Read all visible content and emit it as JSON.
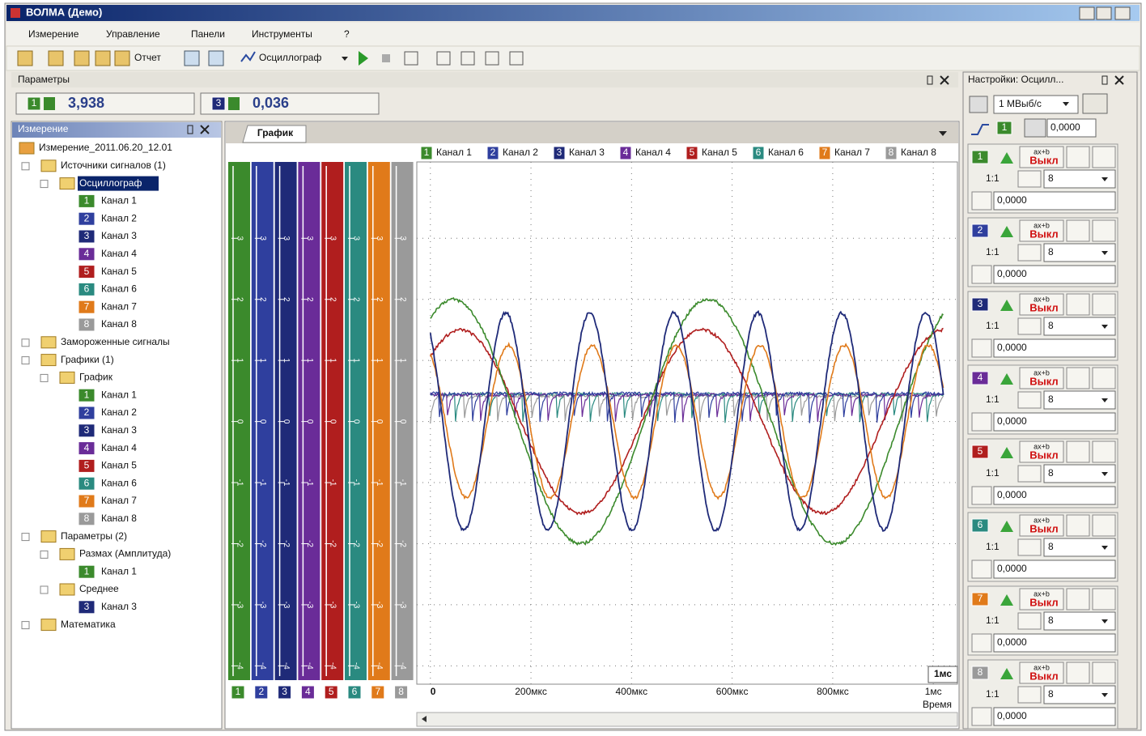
{
  "window": {
    "title": "ВОЛМА (Демо)"
  },
  "menu": [
    "Измерение",
    "Управление",
    "Панели",
    "Инструменты",
    "?"
  ],
  "toolbar": {
    "report": "Отчет",
    "device": "Осциллограф"
  },
  "channels": [
    {
      "number": "1",
      "name": "Канал 1",
      "color": "#3b8a2c"
    },
    {
      "number": "2",
      "name": "Канал 2",
      "color": "#2f3f9e"
    },
    {
      "number": "3",
      "name": "Канал 3",
      "color": "#1f2a78"
    },
    {
      "number": "4",
      "name": "Канал 4",
      "color": "#6a2c98"
    },
    {
      "number": "5",
      "name": "Канал 5",
      "color": "#b01e1e"
    },
    {
      "number": "6",
      "name": "Канал 6",
      "color": "#2a8a80"
    },
    {
      "number": "7",
      "name": "Канал 7",
      "color": "#e07a1a"
    },
    {
      "number": "8",
      "name": "Канал 8",
      "color": "#9a9a9a"
    }
  ],
  "parameters": {
    "title": "Параметры",
    "items": [
      {
        "channel": "1",
        "value": "3,938"
      },
      {
        "channel": "3",
        "value": "0,036"
      }
    ]
  },
  "tree": {
    "title": "Измерение",
    "nodes": [
      {
        "label": "Измерение_2011.06.20_12.01",
        "level": 0
      },
      {
        "label": "Источники сигналов (1)",
        "level": 1
      },
      {
        "label": "Осциллограф",
        "level": 2,
        "selected": true
      },
      {
        "label": "Канал 1",
        "badge": "1",
        "level": 3
      },
      {
        "label": "Канал 2",
        "badge": "2",
        "level": 3
      },
      {
        "label": "Канал 3",
        "badge": "3",
        "level": 3
      },
      {
        "label": "Канал 4",
        "badge": "4",
        "level": 3
      },
      {
        "label": "Канал 5",
        "badge": "5",
        "level": 3
      },
      {
        "label": "Канал 6",
        "badge": "6",
        "level": 3
      },
      {
        "label": "Канал 7",
        "badge": "7",
        "level": 3
      },
      {
        "label": "Канал 8",
        "badge": "8",
        "level": 3
      },
      {
        "label": "Замороженные сигналы",
        "level": 1
      },
      {
        "label": "Графики (1)",
        "level": 1
      },
      {
        "label": "График",
        "level": 2
      },
      {
        "label": "Канал 1",
        "badge": "1",
        "level": 3
      },
      {
        "label": "Канал 2",
        "badge": "2",
        "level": 3
      },
      {
        "label": "Канал 3",
        "badge": "3",
        "level": 3
      },
      {
        "label": "Канал 4",
        "badge": "4",
        "level": 3
      },
      {
        "label": "Канал 5",
        "badge": "5",
        "level": 3
      },
      {
        "label": "Канал 6",
        "badge": "6",
        "level": 3
      },
      {
        "label": "Канал 7",
        "badge": "7",
        "level": 3
      },
      {
        "label": "Канал 8",
        "badge": "8",
        "level": 3
      },
      {
        "label": "Параметры (2)",
        "level": 1
      },
      {
        "label": "Размах (Амплитуда)",
        "level": 2
      },
      {
        "label": "Канал 1",
        "badge": "1",
        "level": 3
      },
      {
        "label": "Среднее",
        "level": 2
      },
      {
        "label": "Канал 3",
        "badge": "3",
        "level": 3
      },
      {
        "label": "Математика",
        "level": 1
      }
    ]
  },
  "graph": {
    "tab": "График",
    "y_range": [
      -4.3,
      4.25
    ],
    "y_ticks": [
      3,
      2,
      1,
      0,
      -1,
      -2,
      -3,
      -4
    ],
    "x_range": [
      -27,
      1048
    ],
    "x_ticks": [
      {
        "value": 0,
        "label": "0"
      },
      {
        "value": 200,
        "label": "200мкс"
      },
      {
        "value": 400,
        "label": "400мкс"
      },
      {
        "value": 600,
        "label": "600мкс"
      },
      {
        "value": 800,
        "label": "800мкс"
      },
      {
        "value": 1000,
        "label": "1мс"
      }
    ],
    "x_scale_box": "1мс",
    "x_title": "Время"
  },
  "settings": {
    "title": "Настройки: Осцилл...",
    "sample_rate": "1 МВыб/с",
    "trigger_channel": "1",
    "trigger_level": "0,0000",
    "channels": [
      {
        "badge": "1",
        "formula": "ax+b",
        "state": "Выкл",
        "ratio": "1:1",
        "range": "8",
        "offset": "0,0000"
      },
      {
        "badge": "2",
        "formula": "ax+b",
        "state": "Выкл",
        "ratio": "1:1",
        "range": "8",
        "offset": "0,0000"
      },
      {
        "badge": "3",
        "formula": "ax+b",
        "state": "Выкл",
        "ratio": "1:1",
        "range": "8",
        "offset": "0,0000"
      },
      {
        "badge": "4",
        "formula": "ax+b",
        "state": "Выкл",
        "ratio": "1:1",
        "range": "8",
        "offset": "0,0000"
      },
      {
        "badge": "5",
        "formula": "ax+b",
        "state": "Выкл",
        "ratio": "1:1",
        "range": "8",
        "offset": "0,0000"
      },
      {
        "badge": "6",
        "formula": "ax+b",
        "state": "Выкл",
        "ratio": "1:1",
        "range": "8",
        "offset": "0,0000"
      },
      {
        "badge": "7",
        "formula": "ax+b",
        "state": "Выкл",
        "ratio": "1:1",
        "range": "8",
        "offset": "0,0000"
      },
      {
        "badge": "8",
        "formula": "ax+b",
        "state": "Выкл",
        "ratio": "1:1",
        "range": "8",
        "offset": "0,0000"
      }
    ]
  }
}
